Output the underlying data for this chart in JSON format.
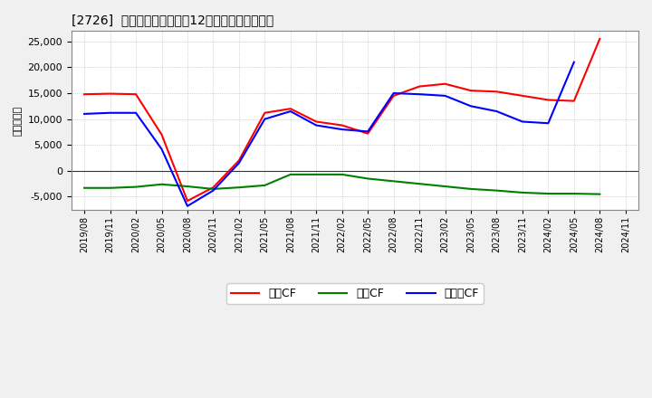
{
  "title": "[2726]  キャッシュフローの12か月移動合計の推移",
  "ylabel": "（百万円）",
  "ylim": [
    -7500,
    27000
  ],
  "yticks": [
    -5000,
    0,
    5000,
    10000,
    15000,
    20000,
    25000
  ],
  "dates": [
    "2019/08",
    "2019/11",
    "2020/02",
    "2020/05",
    "2020/08",
    "2020/11",
    "2021/02",
    "2021/05",
    "2021/08",
    "2021/11",
    "2022/02",
    "2022/05",
    "2022/08",
    "2022/11",
    "2023/02",
    "2023/05",
    "2023/08",
    "2023/11",
    "2024/02",
    "2024/05",
    "2024/08",
    "2024/11"
  ],
  "eigyo_cf": [
    14800,
    14900,
    14800,
    7000,
    -5800,
    -3200,
    2000,
    11200,
    12000,
    9500,
    8800,
    7200,
    14500,
    16300,
    16800,
    15500,
    15300,
    14500,
    13700,
    13500,
    25500,
    null
  ],
  "toshi_cf": [
    -3300,
    -3300,
    -3100,
    -2600,
    -3000,
    -3500,
    -3200,
    -2800,
    -700,
    -700,
    -700,
    -1500,
    -2000,
    -2500,
    -3000,
    -3500,
    -3800,
    -4200,
    -4400,
    -4400,
    -4500,
    null
  ],
  "free_cf": [
    11000,
    11200,
    11200,
    4200,
    -6800,
    -3800,
    1500,
    10000,
    11500,
    8800,
    8000,
    7600,
    15000,
    14800,
    14500,
    12500,
    11500,
    9500,
    9200,
    21000,
    null,
    null
  ],
  "legend_labels": [
    "営業CF",
    "投資CF",
    "フリーCF"
  ],
  "eigyo_color": "#ff0000",
  "toshi_color": "#008000",
  "free_color": "#0000ff",
  "line_width": 1.5,
  "bg_color": "#f0f0f0",
  "plot_bg_color": "#ffffff",
  "grid_color": "#b0b0b0"
}
